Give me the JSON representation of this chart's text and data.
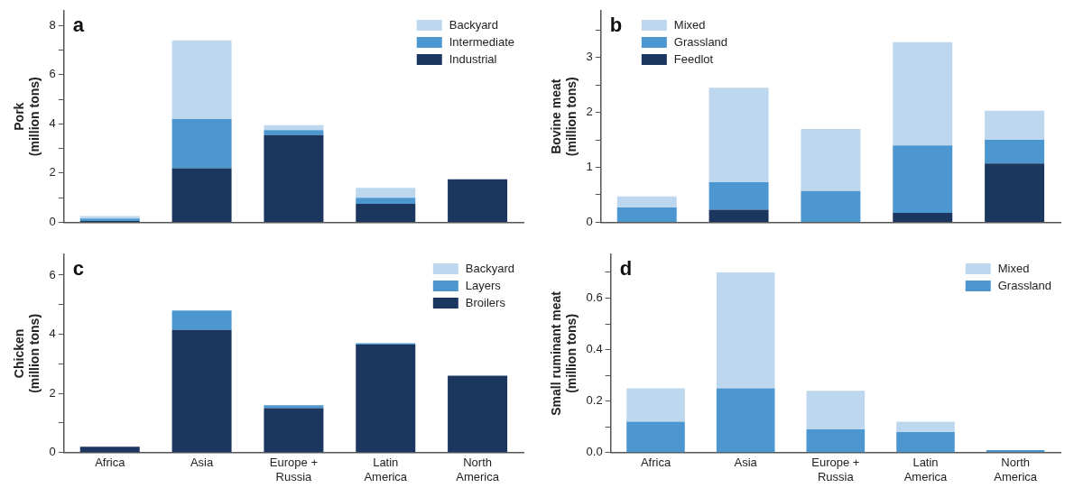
{
  "chart_data": [
    {
      "type": "bar",
      "title": "a",
      "ylabel": "Pork\n(million tons)",
      "stacked": true,
      "legend": "top right",
      "categories": [
        null,
        null,
        null,
        null,
        null
      ],
      "series": [
        {
          "name": "Industrial",
          "color": "#1b365f",
          "values": [
            0.05,
            2.2,
            3.55,
            0.75,
            1.75
          ]
        },
        {
          "name": "Intermediate",
          "color": "#4d97d1",
          "values": [
            0.1,
            2.0,
            0.2,
            0.25,
            0
          ]
        },
        {
          "name": "Backyard",
          "color": "#bcd7ee",
          "values": [
            0.1,
            3.2,
            0.2,
            0.4,
            0
          ]
        }
      ],
      "ylim": [
        0,
        8.6
      ],
      "yticks": [
        0,
        {
          "value": 1,
          "label": null
        },
        2,
        {
          "value": 3,
          "label": null
        },
        4,
        {
          "value": 5,
          "label": null
        },
        6,
        {
          "value": 7,
          "label": null
        },
        8
      ]
    },
    {
      "type": "bar",
      "title": "b",
      "ylabel": "Bovine meat\n(million tons)",
      "stacked": true,
      "legend": "top left",
      "categories": [
        null,
        null,
        null,
        null,
        null
      ],
      "series": [
        {
          "name": "Feedlot",
          "color": "#1b365f",
          "values": [
            0,
            0.23,
            0,
            0.17,
            1.07
          ]
        },
        {
          "name": "Grassland",
          "color": "#4d97d1",
          "values": [
            0.27,
            0.5,
            0.57,
            1.23,
            0.43
          ]
        },
        {
          "name": "Mixed",
          "color": "#bcd7ee",
          "values": [
            0.2,
            1.72,
            1.13,
            1.88,
            0.53
          ]
        }
      ],
      "ylim": [
        0,
        3.85
      ],
      "yticks": [
        0,
        {
          "value": 0.5,
          "label": null
        },
        1,
        {
          "value": 1.5,
          "label": null
        },
        2,
        {
          "value": 2.5,
          "label": null
        },
        3,
        {
          "value": 3.5,
          "label": null
        }
      ]
    },
    {
      "type": "bar",
      "title": "c",
      "ylabel": "Chicken\n(million tons)",
      "stacked": true,
      "legend": "top right",
      "categories": [
        "Africa",
        "Asia",
        "Europe +\nRussia",
        "Latin\nAmerica",
        "North\nAmerica"
      ],
      "series": [
        {
          "name": "Broilers",
          "color": "#1b365f",
          "values": [
            0.2,
            4.15,
            1.5,
            3.65,
            2.6
          ]
        },
        {
          "name": "Layers",
          "color": "#4d97d1",
          "values": [
            0,
            0.65,
            0.1,
            0.05,
            0
          ]
        },
        {
          "name": "Backyard",
          "color": "#bcd7ee",
          "values": [
            0,
            0,
            0,
            0,
            0
          ]
        }
      ],
      "ylim": [
        0,
        6.7
      ],
      "yticks": [
        0,
        {
          "value": 1,
          "label": null
        },
        2,
        {
          "value": 3,
          "label": null
        },
        4,
        {
          "value": 5,
          "label": null
        },
        6
      ]
    },
    {
      "type": "bar",
      "title": "d",
      "ylabel": "Small ruminant meat\n(million tons)",
      "stacked": true,
      "legend": "top right",
      "categories": [
        "Africa",
        "Asia",
        "Europe +\nRussia",
        "Latin\nAmerica",
        "North\nAmerica"
      ],
      "series": [
        {
          "name": "Grassland",
          "color": "#4d97d1",
          "values": [
            0.12,
            0.25,
            0.09,
            0.08,
            0.01
          ]
        },
        {
          "name": "Mixed",
          "color": "#bcd7ee",
          "values": [
            0.13,
            0.45,
            0.15,
            0.04,
            0
          ]
        }
      ],
      "ylim": [
        0,
        0.77
      ],
      "yticks": [
        {
          "value": 0,
          "label": "0.0"
        },
        {
          "value": 0.1,
          "label": null
        },
        0.2,
        {
          "value": 0.3,
          "label": null
        },
        0.4,
        {
          "value": 0.5,
          "label": null
        },
        0.6,
        {
          "value": 0.7,
          "label": null
        }
      ]
    }
  ]
}
